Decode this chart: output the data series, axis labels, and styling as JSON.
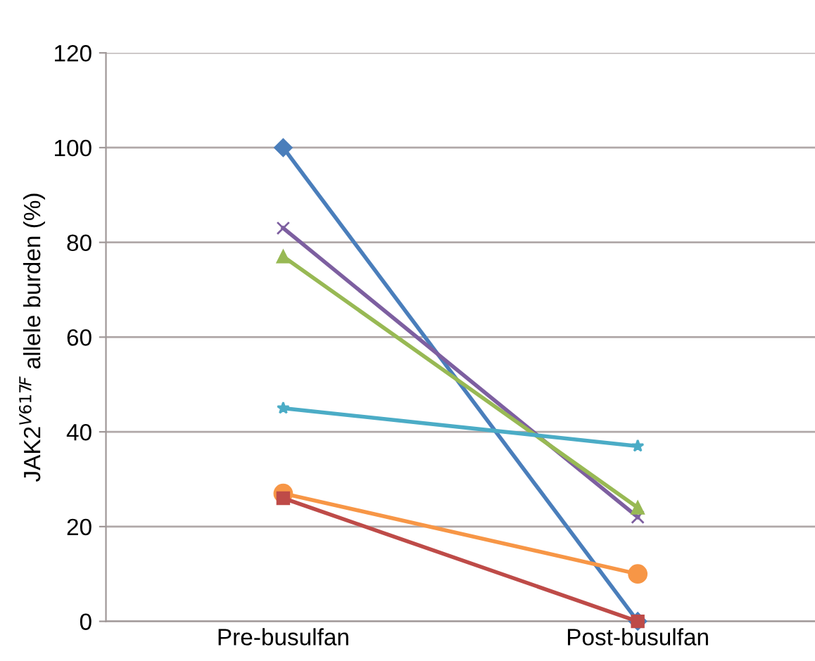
{
  "chart_data": {
    "type": "line",
    "ylabel": "JAK2$^{V617F}$ allele burden (%)",
    "categories": [
      "Pre-busulfan",
      "Post-busulfan"
    ],
    "series": [
      {
        "color": "#4a7ebb",
        "marker": "diamond",
        "values": [
          100,
          0
        ]
      },
      {
        "color": "#7d5fa0",
        "marker": "cross",
        "values": [
          83,
          22
        ]
      },
      {
        "color": "#98b954",
        "marker": "triangle",
        "values": [
          77,
          24
        ]
      },
      {
        "color": "#4bacc6",
        "marker": "star",
        "values": [
          45,
          37
        ]
      },
      {
        "color": "#f79646",
        "marker": "circle",
        "values": [
          27,
          10
        ]
      },
      {
        "color": "#be4b48",
        "marker": "square",
        "values": [
          26,
          0
        ]
      }
    ],
    "ylim": [
      0,
      120
    ],
    "yticks": [
      0,
      20,
      40,
      60,
      80,
      100,
      120
    ],
    "grid": "y",
    "legend": false
  }
}
